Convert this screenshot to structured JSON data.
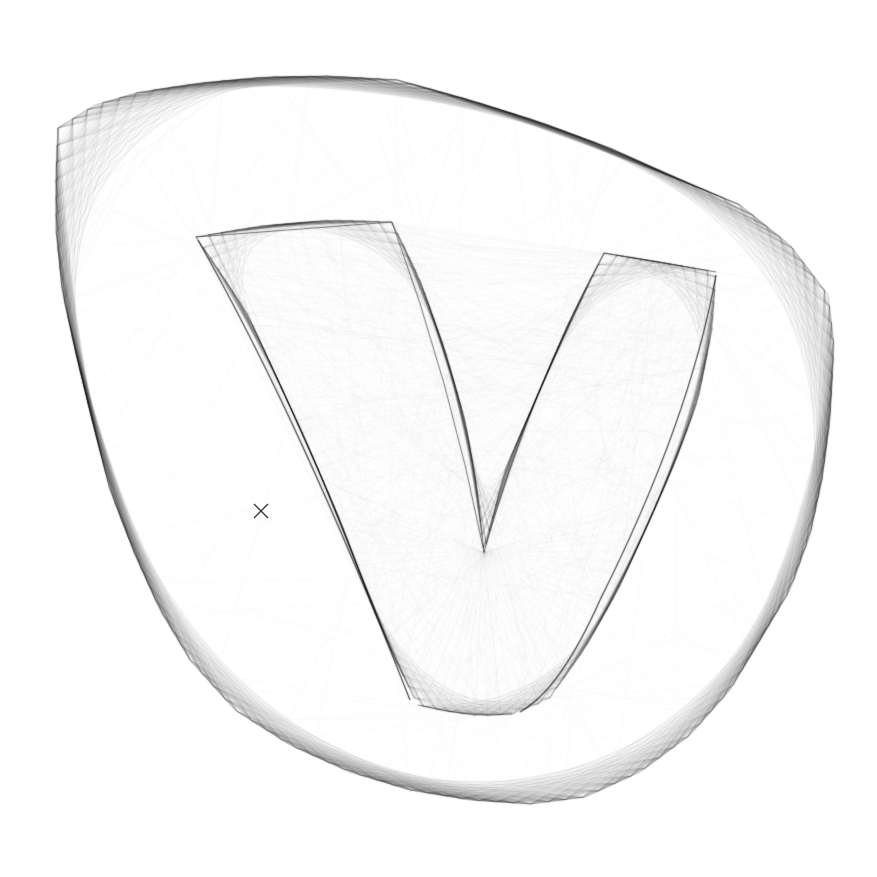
{
  "artwork": {
    "background_color": "#ffffff",
    "stroke_color": "#000000",
    "subject": "letter-v-string-art",
    "outer_shape": "rounded-blob",
    "inner_shape": "letter-v"
  },
  "cursor": {
    "icon": "crosshair-x-icon",
    "color": "#333333"
  }
}
